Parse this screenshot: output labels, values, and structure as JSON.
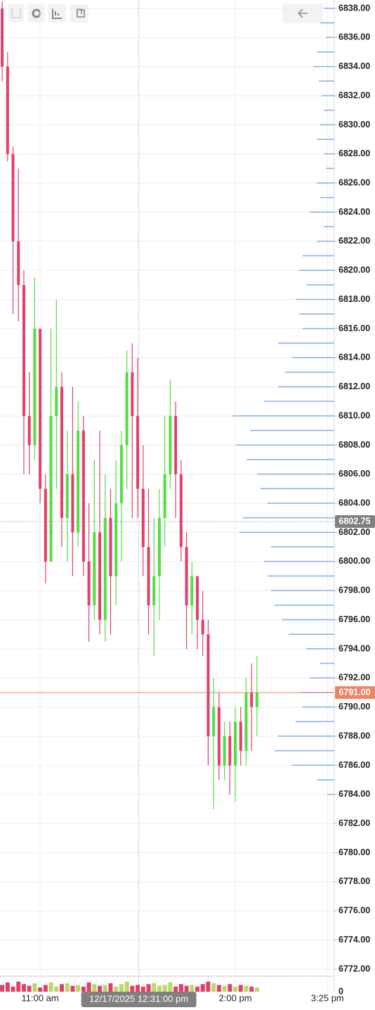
{
  "chart_data": {
    "type": "candlestick",
    "x": [
      "10:25 am",
      "10:30 am",
      "10:35 am",
      "10:40 am",
      "10:45 am",
      "10:50 am",
      "10:55 am",
      "11:00 am",
      "11:05 am",
      "11:10 am",
      "11:15 am",
      "11:20 am",
      "11:25 am",
      "11:30 am",
      "11:35 am",
      "11:40 am",
      "11:45 am",
      "11:50 am",
      "11:55 am",
      "12:00 pm",
      "12:05 pm",
      "12:10 pm",
      "12:15 pm",
      "12:20 pm",
      "12:25 pm",
      "12:30 pm",
      "12:35 pm",
      "12:40 pm",
      "12:45 pm",
      "12:50 pm",
      "12:55 pm",
      "1:00 pm",
      "1:05 pm",
      "1:10 pm",
      "1:15 pm",
      "1:20 pm",
      "1:25 pm",
      "1:30 pm",
      "1:35 pm",
      "1:40 pm",
      "1:45 pm",
      "1:50 pm",
      "1:55 pm",
      "2:00 pm",
      "2:05 pm",
      "2:10 pm",
      "2:15 pm",
      "2:20 pm"
    ],
    "open": [
      6838,
      6834,
      6828,
      6822,
      6819,
      6810,
      6808,
      6816,
      6805,
      6800,
      6810,
      6812,
      6803,
      6806,
      6802,
      6809,
      6800,
      6797,
      6802,
      6796,
      6803,
      6799,
      6804,
      6808,
      6813,
      6810,
      6805,
      6801,
      6797,
      6799,
      6803,
      6806,
      6810,
      6806,
      6801,
      6797,
      6799,
      6796,
      6795,
      6788,
      6790,
      6786,
      6788,
      6786,
      6789,
      6787,
      6791,
      6790
    ],
    "high": [
      6838.5,
      6835,
      6828.5,
      6827,
      6820,
      6813,
      6819.5,
      6816,
      6806,
      6816,
      6818,
      6813,
      6809,
      6812,
      6811,
      6810,
      6804,
      6807,
      6809,
      6806,
      6805,
      6807,
      6809,
      6814.5,
      6815,
      6814,
      6808,
      6805,
      6803,
      6805,
      6810,
      6812.5,
      6811,
      6807,
      6802,
      6800,
      6798.5,
      6798,
      6796,
      6792,
      6791,
      6789,
      6789,
      6790,
      6790,
      6792,
      6793,
      6793.5
    ],
    "low": [
      6833,
      6827.5,
      6817,
      6816.5,
      6806,
      6806,
      6807,
      6804,
      6798.5,
      6800,
      6805,
      6801,
      6800,
      6799,
      6801,
      6799,
      6794.5,
      6796,
      6795,
      6794.5,
      6795,
      6797,
      6800,
      6805,
      6803,
      6803,
      6799,
      6795,
      6793.5,
      6796,
      6801,
      6805,
      6803,
      6800,
      6794,
      6795,
      6794,
      6793.5,
      6786,
      6783,
      6785,
      6785,
      6784,
      6783.5,
      6786,
      6786,
      6787,
      6788
    ],
    "close": [
      6834,
      6828,
      6822,
      6819,
      6810,
      6808,
      6816,
      6805,
      6800,
      6810,
      6812,
      6803,
      6806,
      6802,
      6809,
      6800,
      6797,
      6802,
      6796,
      6803,
      6799,
      6804,
      6808,
      6813,
      6810,
      6805,
      6801,
      6797,
      6799,
      6803,
      6806,
      6810,
      6806,
      6801,
      6797,
      6799,
      6796,
      6795,
      6788,
      6790,
      6786,
      6788,
      6786,
      6789,
      6787,
      6791,
      6790,
      6791
    ],
    "up_color": "#55dd44",
    "down_color": "#e0406a",
    "xlim": [
      "10:23 am",
      "3:30 pm"
    ],
    "xticks": [
      "11:00 am",
      "2:00 pm",
      "3:25 pm"
    ],
    "ylim": [
      6772,
      6838
    ],
    "yticks": [
      {
        "value": 6838,
        "label": "6838.00"
      },
      {
        "value": 6836,
        "label": "6836.00"
      },
      {
        "value": 6834,
        "label": "6834.00"
      },
      {
        "value": 6832,
        "label": "6832.00"
      },
      {
        "value": 6830,
        "label": "6830.00"
      },
      {
        "value": 6828,
        "label": "6828.00"
      },
      {
        "value": 6826,
        "label": "6826.00"
      },
      {
        "value": 6824,
        "label": "6824.00"
      },
      {
        "value": 6822,
        "label": "6822.00"
      },
      {
        "value": 6820,
        "label": "6820.00"
      },
      {
        "value": 6818,
        "label": "6818.00"
      },
      {
        "value": 6816,
        "label": "6816.00"
      },
      {
        "value": 6814,
        "label": "6814.00"
      },
      {
        "value": 6812,
        "label": "6812.00"
      },
      {
        "value": 6810,
        "label": "6810.00"
      },
      {
        "value": 6808,
        "label": "6808.00"
      },
      {
        "value": 6806,
        "label": "6806.00"
      },
      {
        "value": 6804,
        "label": "6804.00"
      },
      {
        "value": 6802,
        "label": "6802.00"
      },
      {
        "value": 6800,
        "label": "6800.00"
      },
      {
        "value": 6798,
        "label": "6798.00"
      },
      {
        "value": 6796,
        "label": "6796.00"
      },
      {
        "value": 6794,
        "label": "6794.00"
      },
      {
        "value": 6792,
        "label": "6792.00"
      },
      {
        "value": 6790,
        "label": "6790.00"
      },
      {
        "value": 6788,
        "label": "6788.00"
      },
      {
        "value": 6786,
        "label": "6786.00"
      },
      {
        "value": 6784,
        "label": "6784.00"
      },
      {
        "value": 6782,
        "label": "6782.00"
      },
      {
        "value": 6780,
        "label": "6780.00"
      },
      {
        "value": 6778,
        "label": "6778.00"
      },
      {
        "value": 6776,
        "label": "6776.00"
      },
      {
        "value": 6774,
        "label": "6774.00"
      },
      {
        "value": 6772,
        "label": "6772.00"
      }
    ],
    "grid": true,
    "crosshair": {
      "x": "12/17/2025 12:31:00 pm",
      "y": 6802.75,
      "y_label": "6802.75"
    },
    "last_price": {
      "value": 6791,
      "label": "6791.00",
      "color": "#f08468"
    },
    "volume": {
      "values": [
        40,
        55,
        30,
        60,
        45,
        35,
        50,
        25,
        40,
        55,
        30,
        45,
        50,
        35,
        40,
        30,
        55,
        45,
        35,
        40,
        50,
        30,
        45,
        60,
        35,
        40,
        30,
        45,
        50,
        35,
        40,
        55,
        30,
        45,
        35,
        40,
        30,
        45,
        60,
        50,
        40,
        35,
        45,
        30,
        40,
        35,
        30,
        25
      ],
      "ylim": [
        0,
        100
      ],
      "yticks": [
        0
      ],
      "color": "#b8d86a"
    },
    "profile": {
      "color": "#8fb3e0",
      "xlim": [
        0,
        150
      ],
      "prices": [
        6838,
        6837,
        6836,
        6835,
        6834,
        6833,
        6832,
        6831,
        6830,
        6829,
        6828,
        6827,
        6826,
        6825,
        6824,
        6823,
        6822,
        6821,
        6820,
        6819,
        6818,
        6817,
        6816,
        6815,
        6814,
        6813,
        6812,
        6811,
        6810,
        6809,
        6808,
        6807,
        6806,
        6805,
        6804,
        6803,
        6802,
        6801,
        6800,
        6799,
        6798,
        6797,
        6796,
        6795,
        6794,
        6793,
        6792,
        6791,
        6790,
        6789,
        6788,
        6787,
        6786,
        6785,
        6784
      ],
      "values": [
        15,
        20,
        12,
        25,
        30,
        22,
        18,
        15,
        20,
        25,
        15,
        12,
        25,
        20,
        35,
        15,
        25,
        45,
        50,
        40,
        55,
        50,
        45,
        80,
        60,
        70,
        80,
        100,
        145,
        120,
        140,
        125,
        110,
        105,
        95,
        130,
        135,
        90,
        100,
        95,
        90,
        85,
        75,
        65,
        40,
        20,
        35,
        50,
        45,
        55,
        80,
        85,
        60,
        25,
        10
      ]
    }
  }
}
